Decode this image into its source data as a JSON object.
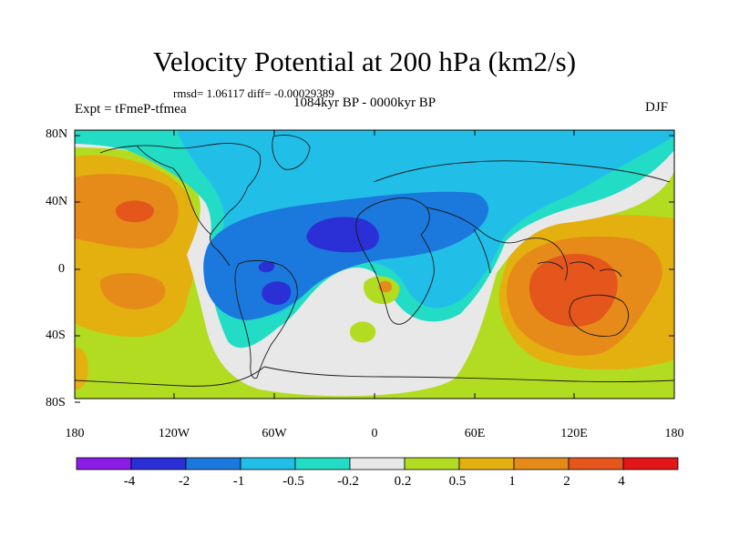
{
  "title": "Velocity Potential at 200 hPa (km2/s)",
  "stats": "rmsd= 1.06117 diff= -0.00029389",
  "experiment": "Expt = tFmeP-tfmea",
  "period": "1084kyr BP - 0000kyr BP",
  "season": "DJF",
  "lat_labels": [
    "80N",
    "40N",
    "0",
    "40S",
    "80S"
  ],
  "lon_labels": [
    "180",
    "120W",
    "60W",
    "0",
    "60E",
    "120E",
    "180"
  ],
  "colorbar": {
    "labels": [
      "-4",
      "-2",
      "-1",
      "-0.5",
      "-0.2",
      "0.2",
      "0.5",
      "1",
      "2",
      "4"
    ],
    "colors": [
      "#8c1ce8",
      "#2b2fd6",
      "#1b78dc",
      "#21bfe8",
      "#23dcc6",
      "#e8e8e8",
      "#b2dc22",
      "#e4b010",
      "#e68a1a",
      "#e4561c",
      "#e21616"
    ]
  }
}
